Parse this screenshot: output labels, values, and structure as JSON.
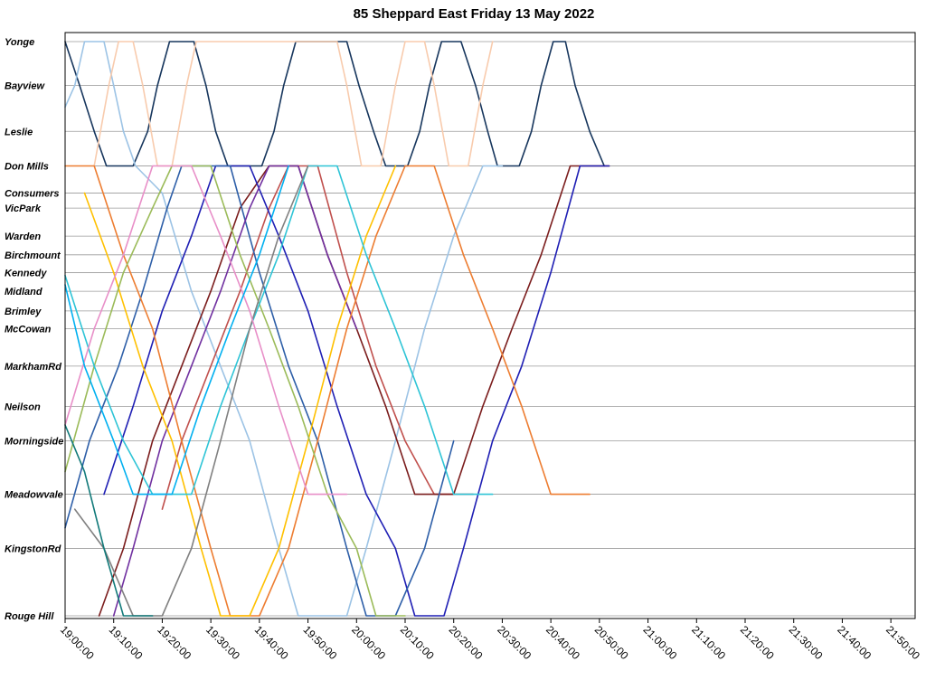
{
  "chart_data": {
    "type": "line",
    "title": "85 Sheppard East Friday 13 May 2022",
    "xlabel": "",
    "ylabel": "",
    "x_axis": {
      "type": "time",
      "range": [
        "19:00:00",
        "21:55:00"
      ],
      "ticks": [
        "19:00:00",
        "19:10:00",
        "19:20:00",
        "19:30:00",
        "19:40:00",
        "19:50:00",
        "20:00:00",
        "20:10:00",
        "20:20:00",
        "20:30:00",
        "20:40:00",
        "20:50:00",
        "21:00:00",
        "21:10:00",
        "21:20:00",
        "21:30:00",
        "21:40:00",
        "21:50:00"
      ]
    },
    "y_axis": {
      "type": "distance-stops",
      "stops": [
        "Yonge",
        "Bayview",
        "Leslie",
        "Don Mills",
        "Consumers",
        "VicPark",
        "Warden",
        "Birchmount",
        "Kennedy",
        "Midland",
        "Brimley",
        "McCowan",
        "MarkhamRd",
        "Neilson",
        "Morningside",
        "Meadowvale",
        "KingstonRd",
        "Rouge Hill"
      ],
      "stop_positions": [
        0,
        0.47,
        0.96,
        1.33,
        1.62,
        1.78,
        2.08,
        2.28,
        2.47,
        2.67,
        2.88,
        3.07,
        3.47,
        3.9,
        4.27,
        4.84,
        5.42,
        6.14
      ],
      "range": [
        0,
        6.14
      ]
    },
    "grid": true,
    "legend": "none",
    "series": [
      {
        "color": "#17365d",
        "points": [
          [
            "19:00:00",
            0
          ],
          [
            "19:03:00",
            0.47
          ],
          [
            "19:06:00",
            0.96
          ],
          [
            "19:08:30",
            1.33
          ],
          [
            "19:14:00",
            1.33
          ],
          [
            "19:17:00",
            0.96
          ],
          [
            "19:19:00",
            0.47
          ],
          [
            "19:21:30",
            0
          ],
          [
            "19:26:30",
            0
          ],
          [
            "19:29:00",
            0.47
          ],
          [
            "19:31:00",
            0.96
          ],
          [
            "19:33:30",
            1.33
          ],
          [
            "19:40:30",
            1.33
          ],
          [
            "19:43:00",
            0.96
          ],
          [
            "19:45:00",
            0.47
          ],
          [
            "19:47:30",
            0
          ],
          [
            "19:58:00",
            0
          ],
          [
            "20:00:30",
            0.47
          ],
          [
            "20:03:30",
            0.96
          ],
          [
            "20:06:00",
            1.33
          ],
          [
            "20:10:30",
            1.33
          ],
          [
            "20:13:00",
            0.96
          ],
          [
            "20:15:00",
            0.47
          ],
          [
            "20:17:30",
            0
          ],
          [
            "20:21:30",
            0
          ],
          [
            "20:24:30",
            0.47
          ],
          [
            "20:27:00",
            0.96
          ],
          [
            "20:29:00",
            1.33
          ],
          [
            "20:33:30",
            1.33
          ],
          [
            "20:36:00",
            0.96
          ],
          [
            "20:38:00",
            0.47
          ],
          [
            "20:40:30",
            0
          ],
          [
            "20:43:00",
            0
          ],
          [
            "20:45:00",
            0.47
          ],
          [
            "20:48:00",
            0.96
          ],
          [
            "20:51:00",
            1.33
          ]
        ]
      },
      {
        "color": "#9cc3e5",
        "points": [
          [
            "19:00:00",
            0.7
          ],
          [
            "19:02:00",
            0.47
          ],
          [
            "19:04:00",
            0
          ],
          [
            "19:08:00",
            0
          ],
          [
            "19:10:00",
            0.47
          ],
          [
            "19:12:00",
            0.96
          ],
          [
            "19:14:30",
            1.33
          ],
          [
            "19:20:00",
            1.62
          ],
          [
            "19:26:00",
            2.67
          ],
          [
            "19:32:00",
            3.47
          ],
          [
            "19:38:00",
            4.27
          ],
          [
            "19:44:00",
            5.42
          ],
          [
            "19:48:00",
            6.14
          ],
          [
            "19:58:00",
            6.14
          ],
          [
            "20:02:00",
            5.42
          ],
          [
            "20:08:00",
            4.27
          ],
          [
            "20:14:00",
            3.07
          ],
          [
            "20:20:00",
            2.08
          ],
          [
            "20:26:00",
            1.33
          ],
          [
            "20:30:00",
            1.33
          ]
        ]
      },
      {
        "color": "#f8cbad",
        "points": [
          [
            "19:06:00",
            1.33
          ],
          [
            "19:09:00",
            0.47
          ],
          [
            "19:11:00",
            0
          ],
          [
            "19:14:00",
            0
          ],
          [
            "19:16:00",
            0.47
          ],
          [
            "19:19:00",
            1.33
          ],
          [
            "19:22:00",
            1.33
          ],
          [
            "19:25:00",
            0.47
          ],
          [
            "19:27:00",
            0
          ],
          [
            "19:56:00",
            0
          ],
          [
            "19:58:00",
            0.47
          ],
          [
            "20:01:00",
            1.33
          ],
          [
            "20:05:00",
            1.33
          ],
          [
            "20:08:00",
            0.47
          ],
          [
            "20:10:00",
            0
          ],
          [
            "20:14:00",
            0
          ],
          [
            "20:16:00",
            0.47
          ],
          [
            "20:19:00",
            1.33
          ],
          [
            "20:23:00",
            1.33
          ],
          [
            "20:26:00",
            0.47
          ],
          [
            "20:28:00",
            0
          ]
        ]
      },
      {
        "color": "#c0504d",
        "points": [
          [
            "19:20:00",
            5.0
          ],
          [
            "19:24:00",
            4.27
          ],
          [
            "19:30:00",
            3.47
          ],
          [
            "19:36:00",
            2.67
          ],
          [
            "19:42:00",
            1.78
          ],
          [
            "19:46:00",
            1.33
          ],
          [
            "19:52:00",
            1.33
          ],
          [
            "19:58:00",
            2.47
          ],
          [
            "20:04:00",
            3.47
          ],
          [
            "20:10:00",
            4.27
          ],
          [
            "20:16:00",
            4.84
          ],
          [
            "20:24:00",
            4.84
          ]
        ]
      },
      {
        "color": "#7b1d1d",
        "points": [
          [
            "19:07:00",
            6.14
          ],
          [
            "19:12:00",
            5.42
          ],
          [
            "19:18:00",
            4.27
          ],
          [
            "19:24:00",
            3.47
          ],
          [
            "19:30:00",
            2.67
          ],
          [
            "19:36:00",
            1.78
          ],
          [
            "19:42:00",
            1.33
          ],
          [
            "19:48:00",
            1.33
          ],
          [
            "19:54:00",
            2.28
          ],
          [
            "20:00:00",
            3.07
          ],
          [
            "20:06:00",
            3.9
          ],
          [
            "20:12:00",
            4.84
          ],
          [
            "20:20:00",
            4.84
          ],
          [
            "20:26:00",
            3.9
          ],
          [
            "20:32:00",
            3.07
          ],
          [
            "20:38:00",
            2.28
          ],
          [
            "20:44:00",
            1.33
          ],
          [
            "20:52:00",
            1.33
          ]
        ]
      },
      {
        "color": "#1f1fb4",
        "points": [
          [
            "19:08:00",
            4.84
          ],
          [
            "19:14:00",
            3.9
          ],
          [
            "19:20:00",
            2.88
          ],
          [
            "19:26:00",
            2.08
          ],
          [
            "19:31:00",
            1.33
          ],
          [
            "19:38:00",
            1.33
          ],
          [
            "19:44:00",
            2.08
          ],
          [
            "19:50:00",
            2.88
          ],
          [
            "19:56:00",
            3.9
          ],
          [
            "20:02:00",
            4.84
          ],
          [
            "20:08:00",
            5.42
          ],
          [
            "20:12:00",
            6.14
          ],
          [
            "20:18:00",
            6.14
          ],
          [
            "20:22:00",
            5.42
          ],
          [
            "20:28:00",
            4.27
          ],
          [
            "20:34:00",
            3.47
          ],
          [
            "20:40:00",
            2.47
          ],
          [
            "20:46:00",
            1.33
          ],
          [
            "20:52:00",
            1.33
          ]
        ]
      },
      {
        "color": "#2e5fa8",
        "points": [
          [
            "19:00:00",
            5.2
          ],
          [
            "19:05:00",
            4.27
          ],
          [
            "19:11:00",
            3.47
          ],
          [
            "19:16:00",
            2.67
          ],
          [
            "19:21:00",
            1.78
          ],
          [
            "19:24:00",
            1.33
          ],
          [
            "19:34:00",
            1.33
          ],
          [
            "19:40:00",
            2.47
          ],
          [
            "19:46:00",
            3.47
          ],
          [
            "19:52:00",
            4.27
          ],
          [
            "19:58:00",
            5.42
          ],
          [
            "20:02:00",
            6.14
          ],
          [
            "20:08:00",
            6.14
          ],
          [
            "20:14:00",
            5.42
          ],
          [
            "20:20:00",
            4.27
          ]
        ]
      },
      {
        "color": "#7030a0",
        "points": [
          [
            "19:10:00",
            6.14
          ],
          [
            "19:14:00",
            5.42
          ],
          [
            "19:20:00",
            4.27
          ],
          [
            "19:26:00",
            3.47
          ],
          [
            "19:32:00",
            2.67
          ],
          [
            "19:38:00",
            1.78
          ],
          [
            "19:42:00",
            1.33
          ],
          [
            "19:48:00",
            1.33
          ],
          [
            "19:54:00",
            2.28
          ],
          [
            "20:00:00",
            3.07
          ]
        ]
      },
      {
        "color": "#ed7d31",
        "points": [
          [
            "19:00:00",
            1.33
          ],
          [
            "19:06:00",
            1.33
          ],
          [
            "19:12:00",
            2.28
          ],
          [
            "19:18:00",
            3.07
          ],
          [
            "19:24:00",
            4.27
          ],
          [
            "19:30:00",
            5.42
          ],
          [
            "19:34:00",
            6.14
          ],
          [
            "19:40:00",
            6.14
          ],
          [
            "19:46:00",
            5.42
          ],
          [
            "19:52:00",
            4.27
          ],
          [
            "19:58:00",
            3.07
          ],
          [
            "20:04:00",
            2.08
          ],
          [
            "20:10:00",
            1.33
          ],
          [
            "20:16:00",
            1.33
          ],
          [
            "20:22:00",
            2.28
          ],
          [
            "20:28:00",
            3.07
          ],
          [
            "20:34:00",
            3.9
          ],
          [
            "20:40:00",
            4.84
          ],
          [
            "20:48:00",
            4.84
          ]
        ]
      },
      {
        "color": "#ffc000",
        "points": [
          [
            "19:04:00",
            1.62
          ],
          [
            "19:10:00",
            2.47
          ],
          [
            "19:16:00",
            3.47
          ],
          [
            "19:22:00",
            4.27
          ],
          [
            "19:28:00",
            5.42
          ],
          [
            "19:32:00",
            6.14
          ],
          [
            "19:38:00",
            6.14
          ],
          [
            "19:44:00",
            5.42
          ],
          [
            "19:50:00",
            4.27
          ],
          [
            "19:56:00",
            3.07
          ],
          [
            "20:02:00",
            2.08
          ],
          [
            "20:08:00",
            1.33
          ]
        ]
      },
      {
        "color": "#9bbb59",
        "points": [
          [
            "19:00:00",
            4.6
          ],
          [
            "19:06:00",
            3.47
          ],
          [
            "19:12:00",
            2.47
          ],
          [
            "19:18:00",
            1.78
          ],
          [
            "19:22:00",
            1.33
          ],
          [
            "19:30:00",
            1.33
          ],
          [
            "19:36:00",
            2.28
          ],
          [
            "19:42:00",
            3.07
          ],
          [
            "19:48:00",
            3.9
          ],
          [
            "19:54:00",
            4.84
          ],
          [
            "20:00:00",
            5.42
          ],
          [
            "20:04:00",
            6.14
          ],
          [
            "20:10:00",
            6.14
          ]
        ]
      },
      {
        "color": "#2ec4d6",
        "points": [
          [
            "19:00:00",
            2.5
          ],
          [
            "19:06:00",
            3.47
          ],
          [
            "19:12:00",
            4.27
          ],
          [
            "19:18:00",
            4.84
          ],
          [
            "19:26:00",
            4.84
          ],
          [
            "19:32:00",
            3.9
          ],
          [
            "19:38:00",
            3.07
          ],
          [
            "19:44:00",
            2.28
          ],
          [
            "19:50:00",
            1.33
          ],
          [
            "19:56:00",
            1.33
          ],
          [
            "20:02:00",
            2.28
          ],
          [
            "20:08:00",
            3.07
          ],
          [
            "20:14:00",
            3.9
          ],
          [
            "20:20:00",
            4.84
          ],
          [
            "20:28:00",
            4.84
          ]
        ]
      },
      {
        "color": "#808080",
        "points": [
          [
            "19:02:00",
            5.0
          ],
          [
            "19:08:00",
            5.42
          ],
          [
            "19:14:00",
            6.14
          ],
          [
            "19:20:00",
            6.14
          ],
          [
            "19:26:00",
            5.42
          ],
          [
            "19:32:00",
            4.27
          ],
          [
            "19:38:00",
            3.07
          ],
          [
            "19:44:00",
            2.08
          ],
          [
            "19:50:00",
            1.33
          ]
        ]
      },
      {
        "color": "#e88fc8",
        "points": [
          [
            "19:00:00",
            4.1
          ],
          [
            "19:06:00",
            3.07
          ],
          [
            "19:12:00",
            2.28
          ],
          [
            "19:18:00",
            1.33
          ],
          [
            "19:26:00",
            1.33
          ],
          [
            "19:32:00",
            2.08
          ],
          [
            "19:38:00",
            2.88
          ],
          [
            "19:44:00",
            3.9
          ],
          [
            "19:50:00",
            4.84
          ],
          [
            "19:58:00",
            4.84
          ]
        ]
      },
      {
        "color": "#127a7a",
        "points": [
          [
            "19:00:00",
            4.1
          ],
          [
            "19:04:00",
            4.6
          ],
          [
            "19:08:00",
            5.42
          ],
          [
            "19:12:00",
            6.14
          ],
          [
            "19:18:00",
            6.14
          ]
        ]
      },
      {
        "color": "#00b0f0",
        "points": [
          [
            "19:00:00",
            2.6
          ],
          [
            "19:04:00",
            3.47
          ],
          [
            "19:10:00",
            4.27
          ],
          [
            "19:14:00",
            4.84
          ],
          [
            "19:22:00",
            4.84
          ],
          [
            "19:28:00",
            3.9
          ],
          [
            "19:34:00",
            3.07
          ],
          [
            "19:40:00",
            2.28
          ],
          [
            "19:46:00",
            1.33
          ]
        ]
      }
    ]
  }
}
